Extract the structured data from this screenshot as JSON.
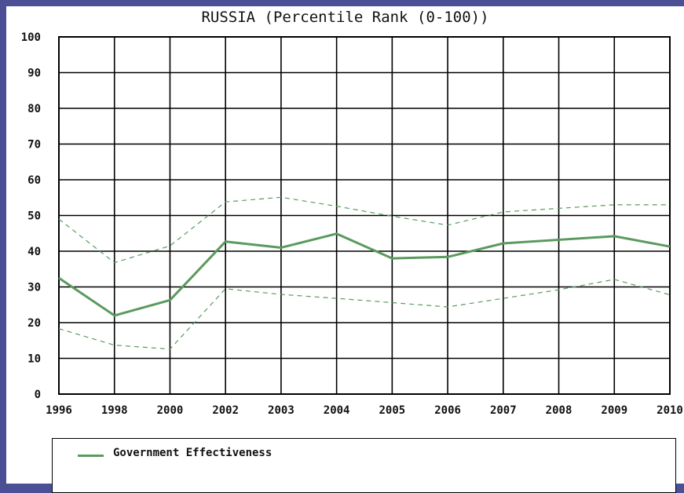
{
  "chart_data": {
    "type": "line",
    "title": "RUSSIA (Percentile Rank (0-100))",
    "categories": [
      "1996",
      "1998",
      "2000",
      "2002",
      "2003",
      "2004",
      "2005",
      "2006",
      "2007",
      "2008",
      "2009",
      "2010"
    ],
    "ylim": [
      0,
      100
    ],
    "yticks": [
      0,
      10,
      20,
      30,
      40,
      50,
      60,
      70,
      80,
      90,
      100
    ],
    "grid": true,
    "legend_placement": "bottom",
    "series": [
      {
        "name": "Government Effectiveness",
        "color": "#5a9a5e",
        "style": "solid",
        "values": [
          32.5,
          22,
          26.3,
          42.7,
          41,
          44.9,
          38,
          38.4,
          42.2,
          43.2,
          44.2,
          41.3
        ]
      },
      {
        "color": "#5a9a5e",
        "style": "dashed",
        "values": [
          49,
          36.8,
          41.5,
          53.8,
          55.1,
          52.6,
          49.8,
          47.3,
          51,
          52,
          53,
          53
        ]
      },
      {
        "color": "#5a9a5e",
        "style": "dashed",
        "values": [
          18.3,
          13.7,
          12.6,
          29.5,
          27.9,
          26.8,
          25.6,
          24.4,
          26.8,
          29.2,
          32.1,
          27.8
        ]
      }
    ]
  },
  "colors": {
    "frame": "#4b4f96",
    "series": "#5a9a5e"
  }
}
